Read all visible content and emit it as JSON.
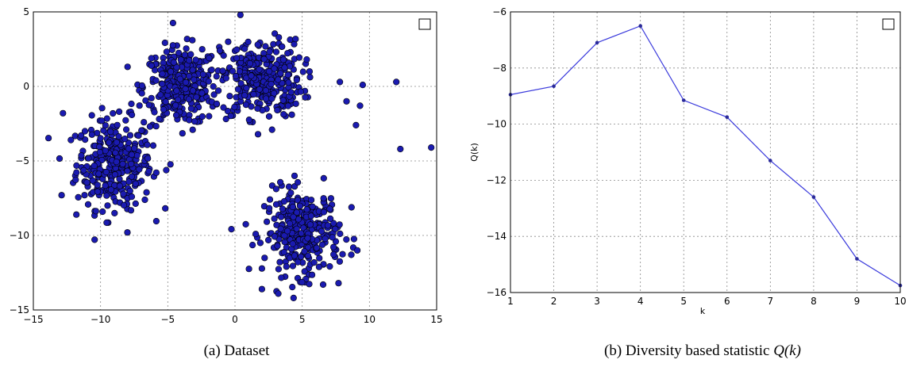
{
  "captions": {
    "a": "(a) Dataset",
    "b_prefix": "(b) Diversity based statistic ",
    "b_math": "Q(k)"
  },
  "chart_data": [
    {
      "type": "scatter",
      "title": "",
      "xlabel": "",
      "ylabel": "",
      "xlim": [
        -15,
        15
      ],
      "ylim": [
        -15,
        5
      ],
      "xticks": [
        -15,
        -10,
        -5,
        0,
        5,
        10,
        15
      ],
      "yticks": [
        -15,
        -10,
        -5,
        0,
        5
      ],
      "grid": true,
      "legend": "top-right",
      "marker_color": "#1a1ab0",
      "clusters": [
        {
          "center": [
            -9,
            -5.2
          ],
          "spread": [
            1.4,
            1.5
          ],
          "n": 320
        },
        {
          "center": [
            -4,
            0
          ],
          "spread": [
            1.4,
            1.3
          ],
          "n": 320
        },
        {
          "center": [
            2,
            0.5
          ],
          "spread": [
            1.5,
            1.3
          ],
          "n": 320
        },
        {
          "center": [
            5,
            -9.8
          ],
          "spread": [
            1.4,
            1.4
          ],
          "n": 320
        }
      ],
      "outliers": [
        [
          7.8,
          0.3
        ],
        [
          8.3,
          -1.0
        ],
        [
          9.0,
          -2.6
        ],
        [
          9.5,
          0.1
        ],
        [
          9.3,
          -1.3
        ],
        [
          12.0,
          0.3
        ],
        [
          12.3,
          -4.2
        ],
        [
          14.6,
          -4.1
        ],
        [
          -12.8,
          -1.8
        ],
        [
          -12.9,
          -7.3
        ],
        [
          -11.8,
          -8.6
        ],
        [
          0.4,
          4.8
        ],
        [
          2.0,
          -13.6
        ],
        [
          7.7,
          -13.2
        ],
        [
          9.1,
          -11.0
        ],
        [
          -8.0,
          -9.8
        ]
      ]
    },
    {
      "type": "line",
      "title": "",
      "xlabel": "k",
      "ylabel": "Q(k)",
      "xlim": [
        1,
        10
      ],
      "ylim": [
        -16,
        -6
      ],
      "xticks": [
        1,
        2,
        3,
        4,
        5,
        6,
        7,
        8,
        9,
        10
      ],
      "yticks": [
        -16,
        -14,
        -12,
        -10,
        -8,
        -6
      ],
      "grid": true,
      "legend": "top-right",
      "series": [
        {
          "color": "#3b3bdc",
          "x": [
            1,
            2,
            3,
            4,
            5,
            6,
            7,
            8,
            9,
            10
          ],
          "y": [
            -8.95,
            -8.65,
            -7.1,
            -6.5,
            -9.15,
            -9.75,
            -11.3,
            -12.6,
            -14.8,
            -15.75
          ]
        }
      ]
    }
  ]
}
